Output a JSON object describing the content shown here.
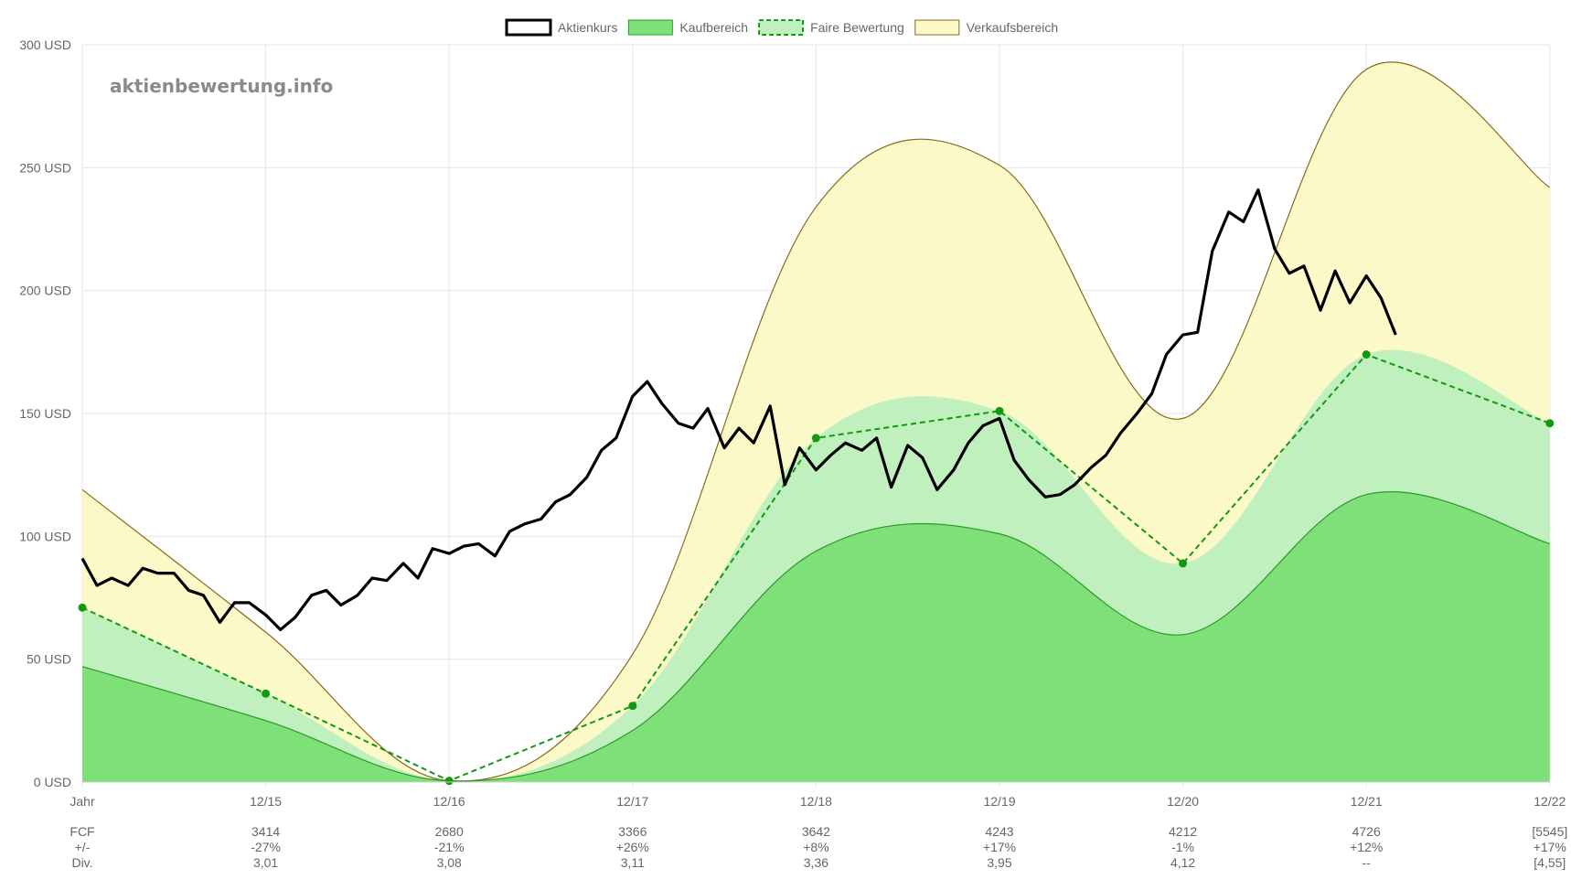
{
  "watermark": "aktienbewertung.info",
  "colors": {
    "price": "#000000",
    "buy_fill": "#7fe07a",
    "buy_line": "#2a9a2a",
    "fair_fill": "#c0f0bd",
    "fair_line": "#119911",
    "sell_fill": "#fbf9c8",
    "sell_line": "#8b6a1f",
    "grid": "#e6e6e6"
  },
  "chart_data": {
    "type": "line",
    "legend": {
      "position": "top-center",
      "items": [
        {
          "label": "Aktienkurs",
          "style": "price"
        },
        {
          "label": "Kaufbereich",
          "style": "buy"
        },
        {
          "label": "Faire Bewertung",
          "style": "fair"
        },
        {
          "label": "Verkaufsbereich",
          "style": "sell"
        }
      ]
    },
    "grid": true,
    "ylim": [
      0,
      300
    ],
    "y_ticks": [
      "0 USD",
      "50 USD",
      "100 USD",
      "150 USD",
      "200 USD",
      "250 USD",
      "300 USD"
    ],
    "y_tick_values": [
      0,
      50,
      100,
      150,
      200,
      250,
      300
    ],
    "x_categories": [
      "Jahr",
      "12/15",
      "12/16",
      "12/17",
      "12/18",
      "12/19",
      "12/20",
      "12/21",
      "12/22"
    ],
    "series": [
      {
        "name": "Verkaufsbereich",
        "values": [
          119,
          61,
          0.5,
          52,
          234,
          251,
          148,
          290,
          242
        ]
      },
      {
        "name": "Faire Bewertung",
        "values": [
          71,
          36,
          0.5,
          31,
          140,
          151,
          89,
          174,
          146
        ]
      },
      {
        "name": "Kaufbereich",
        "values": [
          47,
          25,
          0.5,
          21,
          94,
          101,
          60,
          117,
          97
        ]
      },
      {
        "name": "Aktienkurs",
        "x": [
          0,
          0.08,
          0.16,
          0.25,
          0.33,
          0.41,
          0.5,
          0.58,
          0.66,
          0.75,
          0.83,
          0.91,
          1.0,
          1.08,
          1.16,
          1.25,
          1.33,
          1.41,
          1.5,
          1.58,
          1.66,
          1.75,
          1.83,
          1.91,
          2.0,
          2.08,
          2.16,
          2.25,
          2.33,
          2.41,
          2.5,
          2.58,
          2.66,
          2.75,
          2.83,
          2.91,
          3.0,
          3.08,
          3.16,
          3.25,
          3.33,
          3.41,
          3.5,
          3.58,
          3.66,
          3.75,
          3.83,
          3.91,
          4.0,
          4.08,
          4.16,
          4.25,
          4.33,
          4.41,
          4.5,
          4.58,
          4.66,
          4.75,
          4.83,
          4.91,
          5.0,
          5.08,
          5.16,
          5.25,
          5.33,
          5.41,
          5.5,
          5.58,
          5.66,
          5.75,
          5.83,
          5.91,
          6.0,
          6.08,
          6.16,
          6.25,
          6.33,
          6.41,
          6.5,
          6.58,
          6.66,
          6.75,
          6.83,
          6.91,
          7.0,
          7.08,
          7.16
        ],
        "values": [
          91,
          80,
          83,
          80,
          87,
          85,
          85,
          78,
          76,
          65,
          73,
          73,
          68,
          62,
          67,
          76,
          78,
          72,
          76,
          83,
          82,
          89,
          83,
          95,
          93,
          96,
          97,
          92,
          102,
          105,
          107,
          114,
          117,
          124,
          135,
          140,
          157,
          163,
          154,
          146,
          144,
          152,
          136,
          144,
          138,
          153,
          121,
          136,
          127,
          133,
          138,
          135,
          140,
          120,
          137,
          132,
          119,
          127,
          138,
          145,
          148,
          131,
          123,
          116,
          117,
          121,
          128,
          133,
          142,
          150,
          158,
          174,
          182,
          183,
          216,
          232,
          228,
          241,
          217,
          207,
          210,
          192,
          208,
          195,
          206,
          197,
          182
        ]
      }
    ]
  },
  "table": {
    "rows": [
      {
        "label": "FCF",
        "values": [
          "3414",
          "2680",
          "3366",
          "3642",
          "4243",
          "4212",
          "4726",
          "[5545]"
        ]
      },
      {
        "label": "+/-",
        "values": [
          "-27%",
          "-21%",
          "+26%",
          "+8%",
          "+17%",
          "-1%",
          "+12%",
          "+17%"
        ]
      },
      {
        "label": "Div.",
        "values": [
          "3,01",
          "3,08",
          "3,11",
          "3,36",
          "3,95",
          "4,12",
          "--",
          "[4,55]"
        ]
      }
    ]
  }
}
